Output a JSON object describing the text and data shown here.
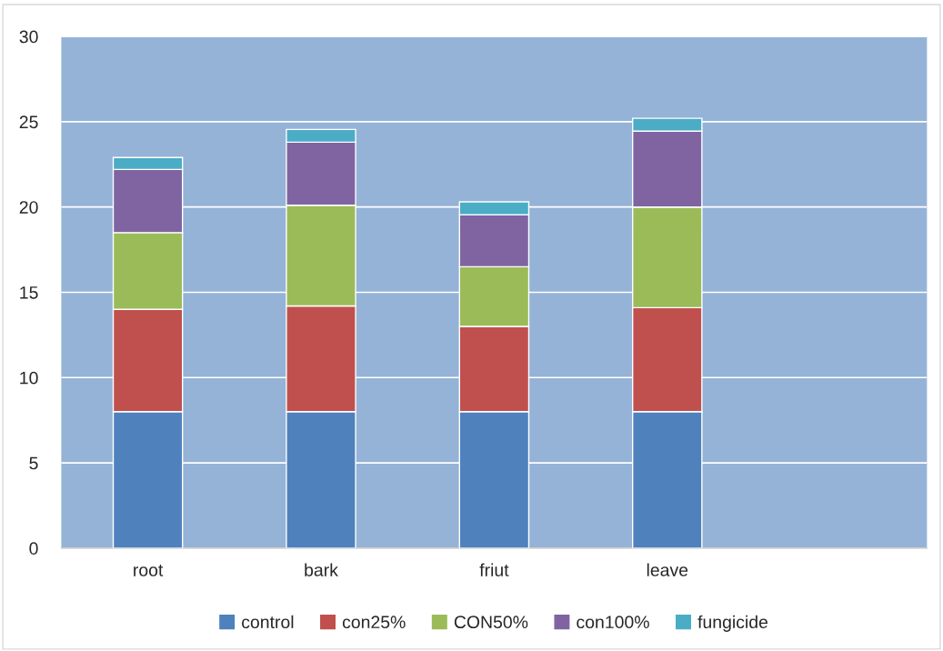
{
  "chart_data": {
    "type": "bar",
    "stacked": true,
    "categories": [
      "root",
      "bark",
      "friut",
      "leave",
      null
    ],
    "series": [
      {
        "name": "control",
        "color": "#4f81bd",
        "values": [
          8,
          8,
          8,
          8,
          null
        ]
      },
      {
        "name": "con25%",
        "color": "#c0504d",
        "values": [
          6,
          6.2,
          5,
          6.1,
          null
        ]
      },
      {
        "name": "CON50%",
        "color": "#9bbb59",
        "values": [
          4.5,
          5.9,
          3.5,
          5.9,
          null
        ]
      },
      {
        "name": "con100%",
        "color": "#8064a2",
        "values": [
          3.7,
          3.7,
          3.05,
          4.45,
          null
        ]
      },
      {
        "name": "fungicide",
        "color": "#4bacc6",
        "values": [
          0.7,
          0.75,
          0.75,
          0.75,
          null
        ]
      }
    ],
    "ylim": [
      0,
      30
    ],
    "yticks": [
      0,
      5,
      10,
      15,
      20,
      25,
      30
    ],
    "grid": "y",
    "legend": "bottom"
  }
}
